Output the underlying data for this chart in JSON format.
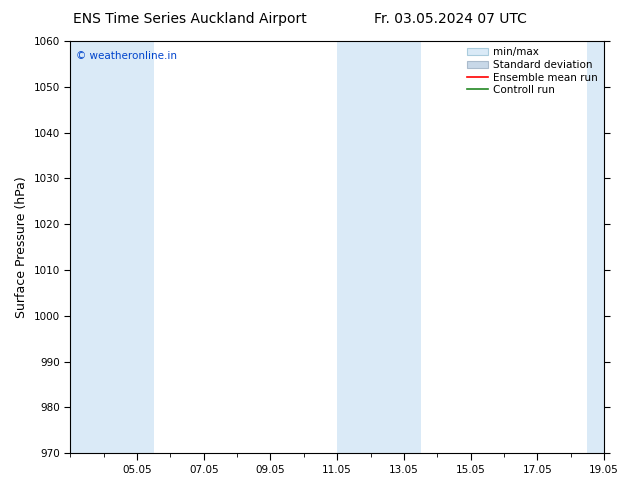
{
  "title_left": "ENS Time Series Auckland Airport",
  "title_right": "Fr. 03.05.2024 07 UTC",
  "ylabel": "Surface Pressure (hPa)",
  "ylim": [
    970,
    1060
  ],
  "yticks": [
    970,
    980,
    990,
    1000,
    1010,
    1020,
    1030,
    1040,
    1050,
    1060
  ],
  "xtick_labels": [
    "05.05",
    "07.05",
    "09.05",
    "11.05",
    "13.05",
    "15.05",
    "17.05",
    "19.05"
  ],
  "xtick_positions": [
    2,
    4,
    6,
    8,
    10,
    12,
    14,
    16
  ],
  "xlim": [
    0,
    16
  ],
  "shaded_bands": [
    {
      "start": 0.0,
      "end": 2.5,
      "color": "#daeaf7"
    },
    {
      "start": 8.0,
      "end": 10.5,
      "color": "#daeaf7"
    },
    {
      "start": 15.5,
      "end": 16.0,
      "color": "#daeaf7"
    }
  ],
  "watermark": "© weatheronline.in",
  "watermark_color": "#0044cc",
  "bg_color": "#ffffff",
  "plot_bg_color": "#ffffff",
  "tick_label_fontsize": 7.5,
  "axis_label_fontsize": 9,
  "title_fontsize": 10,
  "legend_fontsize": 7.5
}
